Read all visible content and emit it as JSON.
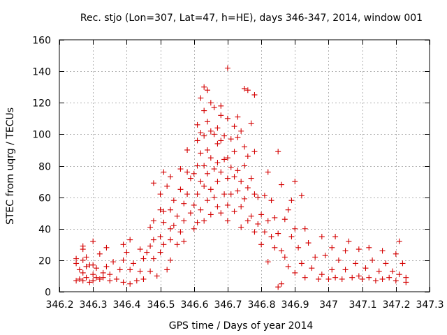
{
  "chart_data": {
    "type": "scatter",
    "title": "Rec. stjo (Lon=307, Lat=47, h=HE), days 346-347, 2014, window 001",
    "xlabel": "GPS time / Days of year 2014",
    "ylabel": "STEC from uqrg / TECUs",
    "xlim": [
      346.2,
      347.3
    ],
    "ylim": [
      0,
      160
    ],
    "x_ticks": [
      346.2,
      346.3,
      346.4,
      346.5,
      346.6,
      346.7,
      346.8,
      346.9,
      347.0,
      347.1,
      347.2,
      347.3
    ],
    "x_tick_labels": [
      "346.2",
      "346.3",
      "346.4",
      "346.5",
      "346.6",
      "346.7",
      "346.8",
      "346.9",
      "347",
      "347.1",
      "347.2",
      "347.3"
    ],
    "y_ticks": [
      0,
      20,
      40,
      60,
      80,
      100,
      120,
      140,
      160
    ],
    "y_tick_labels": [
      "0",
      "20",
      "40",
      "60",
      "80",
      "100",
      "120",
      "140",
      "160"
    ],
    "grid": true,
    "marker": "+",
    "color": "#d40000",
    "series": [
      {
        "points": [
          [
            346.25,
            7
          ],
          [
            346.25,
            21
          ],
          [
            346.25,
            18
          ],
          [
            346.26,
            8
          ],
          [
            346.26,
            14
          ],
          [
            346.27,
            29
          ],
          [
            346.27,
            27
          ],
          [
            346.27,
            20
          ],
          [
            346.27,
            12
          ],
          [
            346.27,
            7
          ],
          [
            346.28,
            22
          ],
          [
            346.28,
            16
          ],
          [
            346.28,
            9
          ],
          [
            346.29,
            6
          ],
          [
            346.29,
            17
          ],
          [
            346.3,
            32
          ],
          [
            346.3,
            17
          ],
          [
            346.3,
            11
          ],
          [
            346.3,
            7
          ],
          [
            346.31,
            15
          ],
          [
            346.31,
            9
          ],
          [
            346.32,
            24
          ],
          [
            346.32,
            8
          ],
          [
            346.33,
            12
          ],
          [
            346.33,
            9
          ],
          [
            346.34,
            28
          ],
          [
            346.34,
            16
          ],
          [
            346.35,
            11
          ],
          [
            346.35,
            7
          ],
          [
            346.36,
            19
          ],
          [
            346.37,
            8
          ],
          [
            346.38,
            14
          ],
          [
            346.39,
            30
          ],
          [
            346.39,
            20
          ],
          [
            346.39,
            6
          ],
          [
            346.4,
            25
          ],
          [
            346.41,
            33
          ],
          [
            346.41,
            14
          ],
          [
            346.41,
            5
          ],
          [
            346.42,
            18
          ],
          [
            346.43,
            7
          ],
          [
            346.44,
            27
          ],
          [
            346.44,
            13
          ],
          [
            346.45,
            21
          ],
          [
            346.45,
            8
          ],
          [
            346.46,
            25
          ],
          [
            346.47,
            41
          ],
          [
            346.47,
            29
          ],
          [
            346.47,
            13
          ],
          [
            346.48,
            69
          ],
          [
            346.48,
            45
          ],
          [
            346.48,
            33
          ],
          [
            346.48,
            21
          ],
          [
            346.49,
            10
          ],
          [
            346.5,
            62
          ],
          [
            346.5,
            52
          ],
          [
            346.5,
            35
          ],
          [
            346.5,
            25
          ],
          [
            346.51,
            76
          ],
          [
            346.51,
            51
          ],
          [
            346.51,
            44
          ],
          [
            346.51,
            30
          ],
          [
            346.52,
            67
          ],
          [
            346.52,
            14
          ],
          [
            346.53,
            73
          ],
          [
            346.53,
            52
          ],
          [
            346.53,
            40
          ],
          [
            346.53,
            33
          ],
          [
            346.53,
            20
          ],
          [
            346.54,
            58
          ],
          [
            346.54,
            42
          ],
          [
            346.55,
            48
          ],
          [
            346.55,
            30
          ],
          [
            346.56,
            78
          ],
          [
            346.56,
            65
          ],
          [
            346.56,
            38
          ],
          [
            346.57,
            56
          ],
          [
            346.57,
            45
          ],
          [
            346.57,
            32
          ],
          [
            346.58,
            90
          ],
          [
            346.58,
            76
          ],
          [
            346.58,
            62
          ],
          [
            346.59,
            72
          ],
          [
            346.59,
            50
          ],
          [
            346.6,
            75
          ],
          [
            346.6,
            55
          ],
          [
            346.6,
            40
          ],
          [
            346.61,
            106
          ],
          [
            346.61,
            96
          ],
          [
            346.61,
            80
          ],
          [
            346.61,
            62
          ],
          [
            346.61,
            44
          ],
          [
            346.62,
            123
          ],
          [
            346.62,
            101
          ],
          [
            346.62,
            88
          ],
          [
            346.62,
            70
          ],
          [
            346.62,
            52
          ],
          [
            346.63,
            130
          ],
          [
            346.63,
            115
          ],
          [
            346.63,
            99
          ],
          [
            346.63,
            80
          ],
          [
            346.63,
            67
          ],
          [
            346.63,
            45
          ],
          [
            346.64,
            128
          ],
          [
            346.64,
            108
          ],
          [
            346.64,
            90
          ],
          [
            346.64,
            75
          ],
          [
            346.64,
            58
          ],
          [
            346.65,
            120
          ],
          [
            346.65,
            102
          ],
          [
            346.65,
            85
          ],
          [
            346.65,
            65
          ],
          [
            346.65,
            49
          ],
          [
            346.66,
            117
          ],
          [
            346.66,
            100
          ],
          [
            346.66,
            78
          ],
          [
            346.66,
            60
          ],
          [
            346.67,
            104
          ],
          [
            346.67,
            94
          ],
          [
            346.67,
            82
          ],
          [
            346.67,
            70
          ],
          [
            346.67,
            54
          ],
          [
            346.68,
            118
          ],
          [
            346.68,
            112
          ],
          [
            346.68,
            96
          ],
          [
            346.68,
            76
          ],
          [
            346.68,
            50
          ],
          [
            346.69,
            99
          ],
          [
            346.69,
            84
          ],
          [
            346.69,
            62
          ],
          [
            346.7,
            142
          ],
          [
            346.7,
            110
          ],
          [
            346.7,
            85
          ],
          [
            346.7,
            72
          ],
          [
            346.7,
            55
          ],
          [
            346.7,
            45
          ],
          [
            346.71,
            97
          ],
          [
            346.71,
            79
          ],
          [
            346.71,
            62
          ],
          [
            346.72,
            105
          ],
          [
            346.72,
            89
          ],
          [
            346.72,
            73
          ],
          [
            346.72,
            51
          ],
          [
            346.73,
            111
          ],
          [
            346.73,
            98
          ],
          [
            346.73,
            77
          ],
          [
            346.73,
            64
          ],
          [
            346.74,
            102
          ],
          [
            346.74,
            70
          ],
          [
            346.74,
            54
          ],
          [
            346.74,
            41
          ],
          [
            346.75,
            129
          ],
          [
            346.75,
            92
          ],
          [
            346.75,
            80
          ],
          [
            346.75,
            59
          ],
          [
            346.76,
            128
          ],
          [
            346.76,
            86
          ],
          [
            346.76,
            66
          ],
          [
            346.76,
            45
          ],
          [
            346.77,
            107
          ],
          [
            346.77,
            72
          ],
          [
            346.77,
            48
          ],
          [
            346.78,
            125
          ],
          [
            346.78,
            89
          ],
          [
            346.78,
            62
          ],
          [
            346.78,
            38
          ],
          [
            346.79,
            60
          ],
          [
            346.79,
            43
          ],
          [
            346.8,
            49
          ],
          [
            346.8,
            30
          ],
          [
            346.81,
            61
          ],
          [
            346.81,
            38
          ],
          [
            346.82,
            76
          ],
          [
            346.82,
            45
          ],
          [
            346.82,
            19
          ],
          [
            346.83,
            58
          ],
          [
            346.83,
            35
          ],
          [
            346.84,
            47
          ],
          [
            346.84,
            28
          ],
          [
            346.85,
            89
          ],
          [
            346.85,
            37
          ],
          [
            346.85,
            3
          ],
          [
            346.86,
            68
          ],
          [
            346.86,
            26
          ],
          [
            346.86,
            5
          ],
          [
            346.87,
            46
          ],
          [
            346.87,
            22
          ],
          [
            346.88,
            52
          ],
          [
            346.88,
            16
          ],
          [
            346.89,
            58
          ],
          [
            346.89,
            35
          ],
          [
            346.9,
            70
          ],
          [
            346.9,
            40
          ],
          [
            346.9,
            12
          ],
          [
            346.91,
            28
          ],
          [
            346.92,
            61
          ],
          [
            346.92,
            18
          ],
          [
            346.93,
            40
          ],
          [
            346.93,
            9
          ],
          [
            346.94,
            31
          ],
          [
            346.95,
            15
          ],
          [
            346.96,
            22
          ],
          [
            346.97,
            8
          ],
          [
            346.98,
            35
          ],
          [
            346.98,
            11
          ],
          [
            346.99,
            23
          ],
          [
            347.0,
            8
          ],
          [
            347.01,
            28
          ],
          [
            347.01,
            14
          ],
          [
            347.02,
            35
          ],
          [
            347.02,
            9
          ],
          [
            347.03,
            20
          ],
          [
            347.04,
            8
          ],
          [
            347.05,
            26
          ],
          [
            347.05,
            14
          ],
          [
            347.06,
            32
          ],
          [
            347.07,
            9
          ],
          [
            347.08,
            18
          ],
          [
            347.09,
            27
          ],
          [
            347.09,
            10
          ],
          [
            347.1,
            8
          ],
          [
            347.11,
            15
          ],
          [
            347.12,
            28
          ],
          [
            347.12,
            9
          ],
          [
            347.13,
            20
          ],
          [
            347.14,
            7
          ],
          [
            347.15,
            13
          ],
          [
            347.16,
            26
          ],
          [
            347.16,
            8
          ],
          [
            347.17,
            18
          ],
          [
            347.18,
            9
          ],
          [
            347.19,
            13
          ],
          [
            347.2,
            24
          ],
          [
            347.2,
            7
          ],
          [
            347.21,
            32
          ],
          [
            347.21,
            11
          ],
          [
            347.22,
            18
          ],
          [
            347.23,
            9
          ],
          [
            347.23,
            6
          ]
        ]
      }
    ]
  }
}
